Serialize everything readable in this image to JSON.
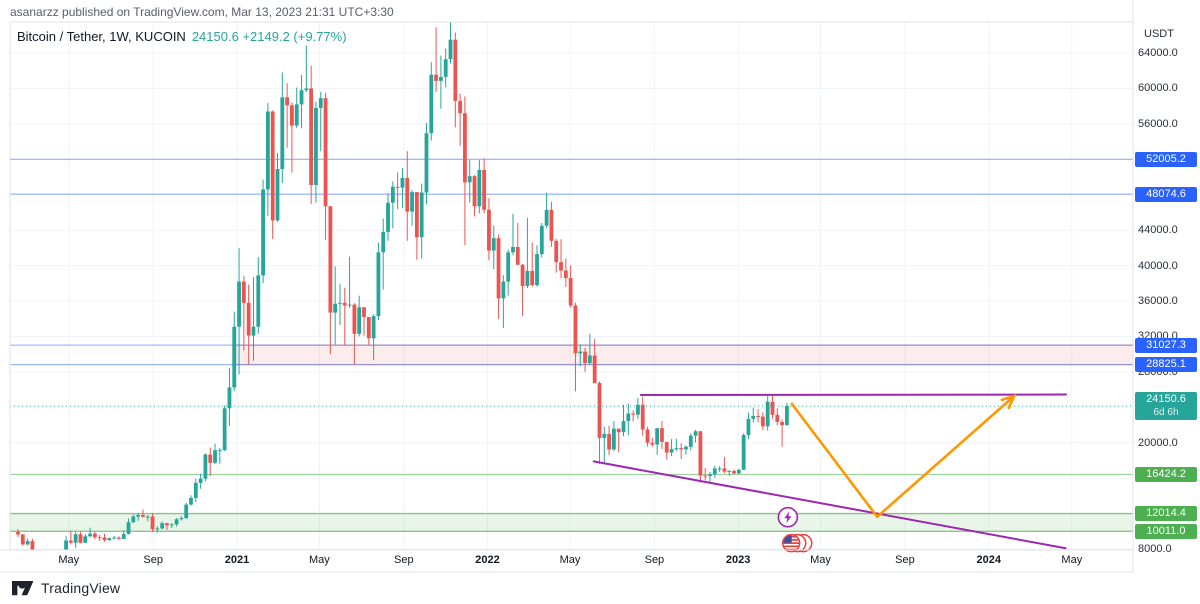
{
  "header": {
    "published_line": "asanarzz published on TradingView.com, Mar 13, 2023 21:31 UTC+3:30"
  },
  "legend": {
    "symbol_line": "Bitcoin / Tether, 1W, KUCOIN",
    "price": "24150.6",
    "change": "+2149.2 (+9.77%)"
  },
  "footer": {
    "brand": "TradingView"
  },
  "y_axis": {
    "currency": "USDT",
    "plain_ticks": [
      "64000.0",
      "60000.0",
      "56000.0",
      "44000.0",
      "40000.0",
      "36000.0",
      "32000.0",
      "28000.0",
      "20000.0",
      "8000.0"
    ],
    "badges": [
      {
        "label": "52005.2",
        "type": "blue"
      },
      {
        "label": "48074.6",
        "type": "blue"
      },
      {
        "label": "31027.3",
        "type": "blue"
      },
      {
        "label": "28825.1",
        "type": "blue"
      },
      {
        "label": "24150.6",
        "sub": "6d 6h",
        "type": "teal"
      },
      {
        "label": "16424.2",
        "type": "green"
      },
      {
        "label": "12014.4",
        "type": "green"
      },
      {
        "label": "10011.0",
        "type": "green"
      }
    ]
  },
  "x_axis": {
    "ticks": [
      {
        "label": "May",
        "week": 10.57,
        "bold": false
      },
      {
        "label": "Sep",
        "week": 28.14,
        "bold": false
      },
      {
        "label": "2021",
        "week": 45.57,
        "bold": true
      },
      {
        "label": "May",
        "week": 62.71,
        "bold": false
      },
      {
        "label": "Sep",
        "week": 80.29,
        "bold": false
      },
      {
        "label": "2022",
        "week": 97.71,
        "bold": true
      },
      {
        "label": "May",
        "week": 114.86,
        "bold": false
      },
      {
        "label": "Sep",
        "week": 132.43,
        "bold": false
      },
      {
        "label": "2023",
        "week": 149.86,
        "bold": true
      },
      {
        "label": "May",
        "week": 167.0,
        "bold": false
      },
      {
        "label": "Sep",
        "week": 184.57,
        "bold": false
      },
      {
        "label": "2024",
        "week": 202.0,
        "bold": true
      },
      {
        "label": "May",
        "week": 219.29,
        "bold": false
      }
    ]
  },
  "colors": {
    "up": "#26a69a",
    "down": "#ef5350",
    "blue_line": "#2962ff",
    "purple": "#9c27b0",
    "orange": "#ff9800",
    "green": "#4caf50",
    "pink_fill": "rgba(239,83,80,0.11)",
    "pink_edge": "rgba(239,83,80,0.35)",
    "green_fill": "rgba(76,175,80,0.13)",
    "grid": "#f0f3fa",
    "axis_border": "#e0e3eb",
    "badge_teal": "#26a69a",
    "badge_green": "#4caf50"
  },
  "chart_data": {
    "type": "candlestick",
    "title": "Bitcoin / Tether, 1W, KUCOIN",
    "interval": "1W",
    "ylim": [
      7900,
      67500
    ],
    "grid_step": 4000,
    "last_price": 24150.6,
    "candles": [
      [
        9960,
        10250,
        9380,
        9660
      ],
      [
        9660,
        9690,
        8420,
        8530
      ],
      [
        8530,
        9190,
        8410,
        8900
      ],
      [
        8900,
        9170,
        3860,
        5350
      ],
      [
        5350,
        6900,
        4460,
        5810
      ],
      [
        5810,
        6980,
        5690,
        5880
      ],
      [
        5880,
        7300,
        5860,
        6740
      ],
      [
        6740,
        7470,
        6560,
        6880
      ],
      [
        6880,
        7290,
        6460,
        7130
      ],
      [
        7130,
        7780,
        6780,
        7700
      ],
      [
        7700,
        9470,
        7630,
        8970
      ],
      [
        8970,
        10070,
        8530,
        8730
      ],
      [
        8730,
        9950,
        8120,
        9680
      ],
      [
        9680,
        9950,
        8650,
        8720
      ],
      [
        8720,
        9700,
        8670,
        9450
      ],
      [
        9450,
        10430,
        9330,
        9750
      ],
      [
        9750,
        9990,
        9100,
        9340
      ],
      [
        9340,
        9590,
        8910,
        9300
      ],
      [
        9300,
        9750,
        8830,
        9010
      ],
      [
        9010,
        9320,
        8940,
        9230
      ],
      [
        9230,
        9480,
        9110,
        9300
      ],
      [
        9300,
        9450,
        9050,
        9160
      ],
      [
        9160,
        10110,
        9140,
        9700
      ],
      [
        9700,
        11440,
        9660,
        11040
      ],
      [
        11040,
        11900,
        10960,
        11680
      ],
      [
        11680,
        12090,
        11190,
        11850
      ],
      [
        11850,
        12470,
        11560,
        11650
      ],
      [
        11650,
        11840,
        11140,
        11680
      ],
      [
        11680,
        12060,
        9960,
        10250
      ],
      [
        10250,
        10580,
        9840,
        10330
      ],
      [
        10330,
        11100,
        10240,
        10920
      ],
      [
        10920,
        10970,
        10160,
        10690
      ],
      [
        10690,
        10930,
        10390,
        10790
      ],
      [
        10790,
        11490,
        10560,
        11370
      ],
      [
        11370,
        11740,
        11230,
        11500
      ],
      [
        11500,
        13210,
        11410,
        13030
      ],
      [
        13030,
        14070,
        12900,
        13780
      ],
      [
        13780,
        15960,
        13300,
        15480
      ],
      [
        15480,
        16490,
        14810,
        15950
      ],
      [
        15950,
        18810,
        15670,
        18680
      ],
      [
        18680,
        19460,
        16260,
        17740
      ],
      [
        17740,
        19910,
        17580,
        19170
      ],
      [
        19170,
        19410,
        17630,
        19170
      ],
      [
        19170,
        24210,
        19060,
        23900
      ],
      [
        23900,
        28420,
        21910,
        26250
      ],
      [
        26250,
        34810,
        25860,
        33100
      ],
      [
        33100,
        41960,
        27710,
        38200
      ],
      [
        38200,
        38820,
        30420,
        35800
      ],
      [
        35800,
        37860,
        28860,
        32100
      ],
      [
        32100,
        38720,
        29260,
        33100
      ],
      [
        33100,
        40960,
        32310,
        38900
      ],
      [
        38900,
        49710,
        38010,
        48600
      ],
      [
        48600,
        58360,
        45610,
        57400
      ],
      [
        57400,
        57510,
        43010,
        45100
      ],
      [
        45100,
        52710,
        44960,
        50900
      ],
      [
        50900,
        61810,
        49310,
        59000
      ],
      [
        59000,
        60610,
        53310,
        58100
      ],
      [
        58100,
        58410,
        50510,
        55800
      ],
      [
        55800,
        60110,
        55510,
        58200
      ],
      [
        58200,
        61510,
        55510,
        59800
      ],
      [
        59800,
        64860,
        59610,
        60000
      ],
      [
        60000,
        62560,
        46960,
        49100
      ],
      [
        49100,
        58510,
        47110,
        57800
      ],
      [
        57800,
        59610,
        52910,
        58900
      ],
      [
        58900,
        59510,
        42910,
        46700
      ],
      [
        46700,
        46710,
        30010,
        34700
      ],
      [
        34700,
        39910,
        31110,
        35700
      ],
      [
        35700,
        37910,
        33310,
        35800
      ],
      [
        35800,
        37510,
        31010,
        35500
      ],
      [
        35500,
        41010,
        35210,
        35600
      ],
      [
        35600,
        35760,
        28810,
        32300
      ],
      [
        32300,
        36610,
        32010,
        35300
      ],
      [
        35300,
        35310,
        32110,
        34200
      ],
      [
        34200,
        34210,
        31010,
        31800
      ],
      [
        31800,
        34510,
        29310,
        34300
      ],
      [
        34300,
        42610,
        33860,
        41500
      ],
      [
        41500,
        45310,
        37310,
        43800
      ],
      [
        43800,
        48160,
        42810,
        47100
      ],
      [
        47100,
        49510,
        44210,
        48900
      ],
      [
        48900,
        50510,
        46360,
        48800
      ],
      [
        48800,
        51010,
        46510,
        49900
      ],
      [
        49900,
        52910,
        42810,
        46100
      ],
      [
        46100,
        48510,
        44510,
        48300
      ],
      [
        48300,
        48310,
        40660,
        43200
      ],
      [
        43200,
        49260,
        40810,
        48250
      ],
      [
        48250,
        56110,
        46910,
        54950
      ],
      [
        54950,
        62960,
        54110,
        61550
      ],
      [
        61550,
        66910,
        59610,
        60850
      ],
      [
        60850,
        63710,
        57710,
        61300
      ],
      [
        61300,
        64510,
        60110,
        63300
      ],
      [
        63300,
        67510,
        62810,
        65500
      ],
      [
        65500,
        66310,
        55610,
        58600
      ],
      [
        58600,
        59410,
        53510,
        57200
      ],
      [
        57200,
        59110,
        42310,
        49400
      ],
      [
        49400,
        51910,
        47110,
        50100
      ],
      [
        50100,
        50210,
        45560,
        46700
      ],
      [
        46700,
        51910,
        45910,
        50800
      ],
      [
        50800,
        52110,
        45910,
        46300
      ],
      [
        46300,
        47610,
        40610,
        41700
      ],
      [
        41700,
        44510,
        39610,
        43100
      ],
      [
        43100,
        43510,
        34010,
        36300
      ],
      [
        36300,
        38910,
        32960,
        38200
      ],
      [
        38200,
        41810,
        36610,
        41500
      ],
      [
        41500,
        45860,
        41160,
        42100
      ],
      [
        42100,
        44810,
        40060,
        40100
      ],
      [
        40100,
        40210,
        34310,
        37700
      ],
      [
        37700,
        45410,
        37460,
        39400
      ],
      [
        39400,
        42610,
        37610,
        37800
      ],
      [
        37800,
        42310,
        37610,
        41300
      ],
      [
        41300,
        44810,
        40910,
        44500
      ],
      [
        44500,
        48210,
        44210,
        46300
      ],
      [
        46300,
        47210,
        42110,
        42800
      ],
      [
        42800,
        43010,
        39210,
        40400
      ],
      [
        40400,
        42970,
        38560,
        39450
      ],
      [
        39450,
        40810,
        37590,
        38600
      ],
      [
        38600,
        40010,
        35260,
        35500
      ],
      [
        35500,
        35810,
        25810,
        30100
      ],
      [
        30100,
        31110,
        28660,
        30300
      ],
      [
        30300,
        30710,
        28010,
        29000
      ],
      [
        29000,
        32310,
        28810,
        29850
      ],
      [
        29850,
        31710,
        26710,
        26750
      ],
      [
        26750,
        26910,
        17610,
        20550
      ],
      [
        20550,
        21810,
        17760,
        21000
      ],
      [
        21000,
        21910,
        18610,
        19250
      ],
      [
        19250,
        22460,
        19060,
        21600
      ],
      [
        21600,
        21610,
        18910,
        21200
      ],
      [
        21200,
        24290,
        20760,
        22450
      ],
      [
        22450,
        24460,
        20860,
        23300
      ],
      [
        23300,
        23660,
        22410,
        23180
      ],
      [
        23180,
        25060,
        22670,
        24300
      ],
      [
        24300,
        25210,
        20810,
        21500
      ],
      [
        21500,
        21810,
        19560,
        20000
      ],
      [
        20000,
        20560,
        19560,
        19800
      ],
      [
        19800,
        21660,
        18660,
        21650
      ],
      [
        21650,
        22460,
        19310,
        20100
      ],
      [
        20100,
        20110,
        18110,
        18900
      ],
      [
        18900,
        20410,
        18510,
        19300
      ],
      [
        19300,
        20460,
        19060,
        19400
      ],
      [
        19400,
        19960,
        18160,
        19250
      ],
      [
        19250,
        19710,
        18660,
        19550
      ],
      [
        19550,
        21060,
        19160,
        20800
      ],
      [
        20800,
        21460,
        20010,
        21300
      ],
      [
        21300,
        21360,
        15510,
        16300
      ],
      [
        16300,
        17160,
        15760,
        16250
      ],
      [
        16250,
        16710,
        15460,
        16450
      ],
      [
        16450,
        17410,
        16060,
        17100
      ],
      [
        17100,
        17360,
        16710,
        17100
      ],
      [
        17100,
        18410,
        16560,
        16750
      ],
      [
        16750,
        16910,
        16260,
        16830
      ],
      [
        16830,
        16990,
        16470,
        16540
      ],
      [
        16540,
        17060,
        16500,
        16950
      ],
      [
        16950,
        21060,
        16910,
        20880
      ],
      [
        20880,
        23410,
        20410,
        22700
      ],
      [
        22700,
        23960,
        22300,
        23030
      ],
      [
        23030,
        23810,
        22310,
        22950
      ],
      [
        22950,
        23460,
        21410,
        21860
      ],
      [
        21860,
        25260,
        21360,
        24630
      ],
      [
        24630,
        25310,
        22710,
        23160
      ],
      [
        23160,
        23910,
        21980,
        22350
      ],
      [
        22350,
        22660,
        19560,
        22000
      ],
      [
        22000,
        24500,
        21950,
        24150.6
      ]
    ],
    "price_lines": {
      "blue": [
        52005.2,
        48074.6,
        31027.3,
        28825.1
      ],
      "green": [
        16424.2
      ],
      "current_dotted": 24150.6
    },
    "zones": [
      {
        "name": "resistance-zone",
        "top": 31027.3,
        "bottom": 28825.1,
        "from_week": 45,
        "full_width": false
      },
      {
        "name": "support-zone",
        "top": 12014.4,
        "bottom": 10011.0,
        "from_week": 0,
        "full_width": true
      }
    ],
    "trendlines": [
      {
        "name": "horizontal-resistance-trendline",
        "points": [
          {
            "week": 129.6,
            "price": 25400
          },
          {
            "week": 218.1,
            "price": 25450
          }
        ]
      },
      {
        "name": "descending-support-trendline",
        "points": [
          {
            "week": 119.8,
            "price": 17900
          },
          {
            "week": 218.0,
            "price": 8100
          }
        ]
      }
    ],
    "projection_arrow": {
      "points": [
        {
          "week": 160.9,
          "price": 24490
        },
        {
          "week": 178.8,
          "price": 11650
        },
        {
          "week": 207.3,
          "price": 25280
        }
      ]
    },
    "event_markers": [
      {
        "name": "lightning-event-marker",
        "week": 160.2,
        "price": 11600
      },
      {
        "name": "us-flag-events-marker",
        "week": 160.9,
        "price": 8670
      }
    ]
  }
}
